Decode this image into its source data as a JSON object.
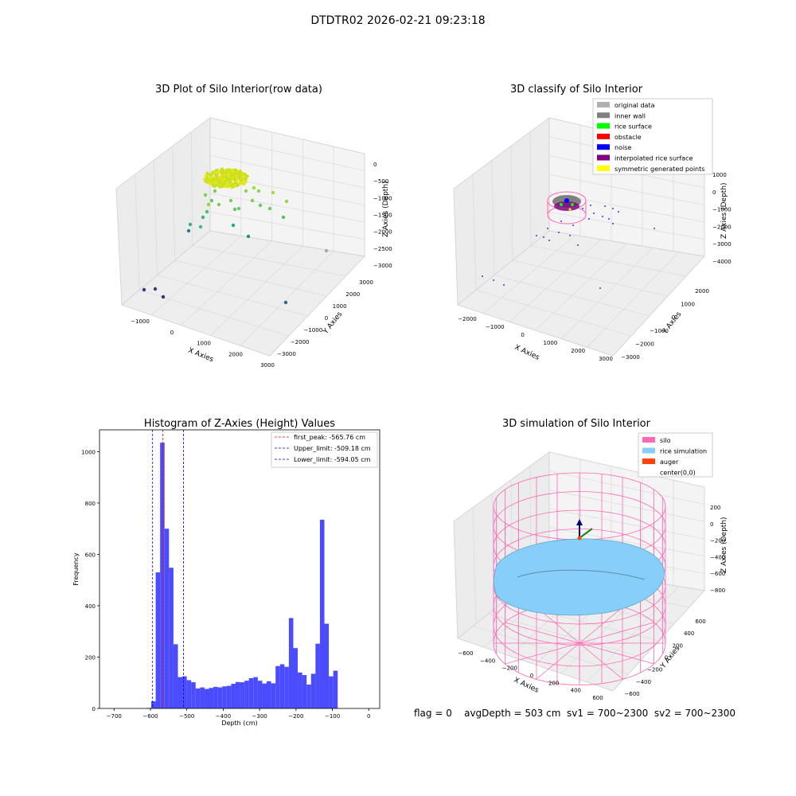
{
  "figure_title": "DTDTR02 2026-02-21 09:23:18",
  "status_line": "flag = 0    avgDepth = 503 cm  sv1 = 700~2300  sv2 = 700~2300",
  "colors": {
    "histogram_bar": "#4c4cff",
    "first_peak_line": "#ff0000",
    "limit_line": "#0000cc",
    "pane": "#f2f2f2",
    "silo": "#ff69b4",
    "rice_simulation": "#87cefa",
    "auger": "#ff4500"
  },
  "chart_data": [
    {
      "type": "scatter",
      "projection": "3d",
      "title": "3D Plot of Silo Interior(row data)",
      "xlabel": "X Axies",
      "ylabel": "Y Axies",
      "zlabel": "Z Axies (Depth)",
      "x_ticks": [
        "−1000",
        "0",
        "1000",
        "2000",
        "3000"
      ],
      "y_ticks": [
        "3000",
        "2000",
        "1000",
        "0",
        "−1000",
        "−2000",
        "−3000"
      ],
      "z_ticks": [
        "0",
        "−500",
        "−1000",
        "−1500",
        "−2000",
        "−2500",
        "−3000"
      ],
      "colormap": "viridis",
      "points_note": "dense yellow-green cluster near depth -500 with scattered points down to about -3000"
    },
    {
      "type": "scatter",
      "projection": "3d",
      "title": "3D classify of Silo Interior",
      "xlabel": "X Axies",
      "ylabel": "Y Axies",
      "zlabel": "Z Axies (Depth)",
      "x_ticks": [
        "−2000",
        "−1000",
        "0",
        "1000",
        "2000",
        "3000"
      ],
      "y_ticks": [
        "2000",
        "1000",
        "0",
        "−1000",
        "−2000",
        "−3000"
      ],
      "z_ticks": [
        "1000",
        "0",
        "−1000",
        "−2000",
        "−3000",
        "−4000"
      ],
      "legend": [
        {
          "label": "original data",
          "color": "#b0b0b0"
        },
        {
          "label": "inner wall",
          "color": "#808080"
        },
        {
          "label": "rice surface",
          "color": "#00ff00"
        },
        {
          "label": "obstacle",
          "color": "#ff0000"
        },
        {
          "label": "noise",
          "color": "#0000ff"
        },
        {
          "label": "interpolated rice surface",
          "color": "#800080"
        },
        {
          "label": "symmetric generated points",
          "color": "#ffff00"
        }
      ],
      "legend_position": "upper right"
    },
    {
      "type": "bar",
      "title": "Histogram of Z-Axies (Height) Values",
      "xlabel": "Depth (cm)",
      "ylabel": "Frequency",
      "xlim": [
        -740,
        30
      ],
      "ylim": [
        0,
        1085
      ],
      "x_ticks": [
        -700,
        -600,
        -500,
        -400,
        -300,
        -200,
        -100,
        0
      ],
      "x_tick_labels": [
        "−700",
        "−600",
        "−500",
        "−400",
        "−300",
        "−200",
        "−100",
        "0"
      ],
      "y_ticks": [
        0,
        200,
        400,
        600,
        800,
        1000
      ],
      "bin_edges_start": -610,
      "bin_width": 12.2,
      "values": [
        2,
        28,
        530,
        1035,
        700,
        548,
        250,
        122,
        125,
        110,
        102,
        78,
        82,
        76,
        80,
        84,
        82,
        86,
        88,
        96,
        103,
        102,
        108,
        118,
        122,
        108,
        97,
        106,
        98,
        165,
        172,
        162,
        352,
        235,
        140,
        130,
        93,
        135,
        252,
        735,
        330,
        125,
        147
      ],
      "vlines": [
        {
          "label": "first_peak: -565.76 cm",
          "x": -565.76,
          "style": "dashed",
          "color": "#ff0000"
        },
        {
          "label": "Upper_limit: -509.18 cm",
          "x": -509.18,
          "style": "dashed",
          "color": "#0000cc"
        },
        {
          "label": "Lower_limit: -594.05 cm",
          "x": -594.05,
          "style": "dashed",
          "color": "#0000cc"
        }
      ],
      "legend_position": "upper right"
    },
    {
      "type": "surface",
      "projection": "3d",
      "title": "3D simulation of Silo Interior",
      "xlabel": "X Axies",
      "ylabel": "Y Axies",
      "zlabel": "Z Axies (Depth)",
      "x_ticks": [
        "−600",
        "−400",
        "−200",
        "0",
        "200",
        "400",
        "600"
      ],
      "y_ticks": [
        "600",
        "400",
        "200",
        "0",
        "−200",
        "−400",
        "−600"
      ],
      "z_ticks": [
        "200",
        "0",
        "−200",
        "−400",
        "−600",
        "−800"
      ],
      "legend": [
        {
          "label": "silo",
          "color": "#ff69b4"
        },
        {
          "label": "rice simulation",
          "color": "#87cefa"
        },
        {
          "label": "auger",
          "color": "#ff4500"
        },
        {
          "label": "center(0,0)",
          "color": ""
        }
      ],
      "legend_position": "upper right"
    }
  ]
}
